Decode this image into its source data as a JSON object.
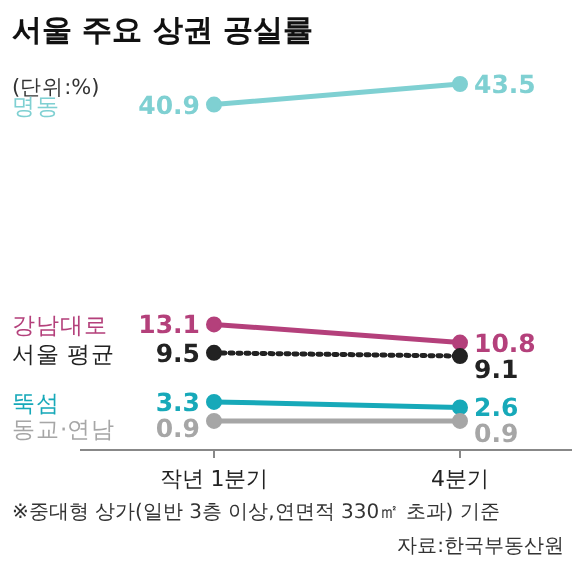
{
  "chart_data": {
    "type": "line",
    "title": "서울 주요 상권 공실률",
    "subtitle": "(단위:%)",
    "categories": [
      "작년 1분기",
      "4분기"
    ],
    "marker": "circle",
    "data_labels": true,
    "series": [
      {
        "name": "명동",
        "color": "#7fd0d2",
        "values": [
          40.9,
          43.5
        ]
      },
      {
        "name": "강남대로",
        "color": "#b4407b",
        "values": [
          13.1,
          10.8
        ]
      },
      {
        "name": "서울 평균",
        "color": "#222222",
        "values": [
          9.5,
          9.1
        ],
        "line_style": "dotted"
      },
      {
        "name": "뚝섬",
        "color": "#17a9b9",
        "values": [
          3.3,
          2.6
        ]
      },
      {
        "name": "동교·연남",
        "color": "#a6a6a6",
        "values": [
          0.9,
          0.9
        ]
      }
    ],
    "annotations": [
      "※중대형 상가(일반 3층 이상,연면적 330㎡ 초과) 기준",
      "자료:한국부동산원"
    ]
  }
}
